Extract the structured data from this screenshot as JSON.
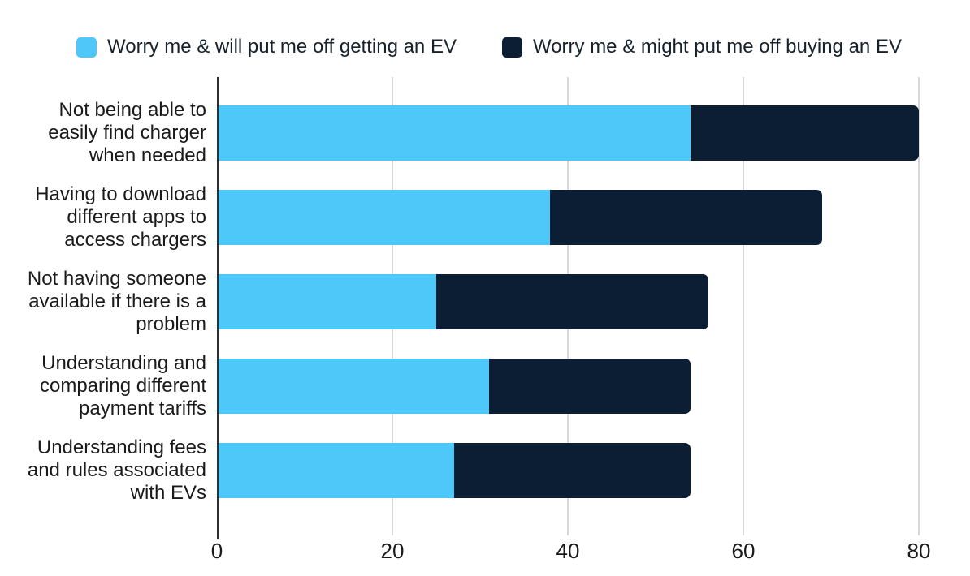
{
  "chart_data": {
    "type": "bar",
    "orientation": "horizontal",
    "stacked": true,
    "categories": [
      "Not being able to\neasily find charger\nwhen needed",
      "Having to download\ndifferent apps to\naccess chargers",
      "Not having someone\navailable if there is a\nproblem",
      "Understanding and\ncomparing different\npayment tariffs",
      "Understanding fees\nand rules associated\nwith EVs"
    ],
    "series": [
      {
        "name": "Worry me & will put me off getting an EV",
        "color": "#4DC8F9",
        "values": [
          54,
          38,
          25,
          31,
          27
        ]
      },
      {
        "name": "Worry me & might put me off buying an EV",
        "color": "#0B1E33",
        "values": [
          26,
          31,
          31,
          23,
          27
        ]
      }
    ],
    "totals": [
      80,
      69,
      56,
      54,
      54
    ],
    "xticks": [
      0,
      20,
      40,
      60,
      80
    ],
    "xlim": [
      0,
      85
    ],
    "grid": true,
    "legend_position": "top",
    "colors": {
      "axis_line": "#2e2e2e",
      "gridline": "#d9d9d9",
      "text": "#1a1a1a",
      "background": "#ffffff"
    }
  }
}
